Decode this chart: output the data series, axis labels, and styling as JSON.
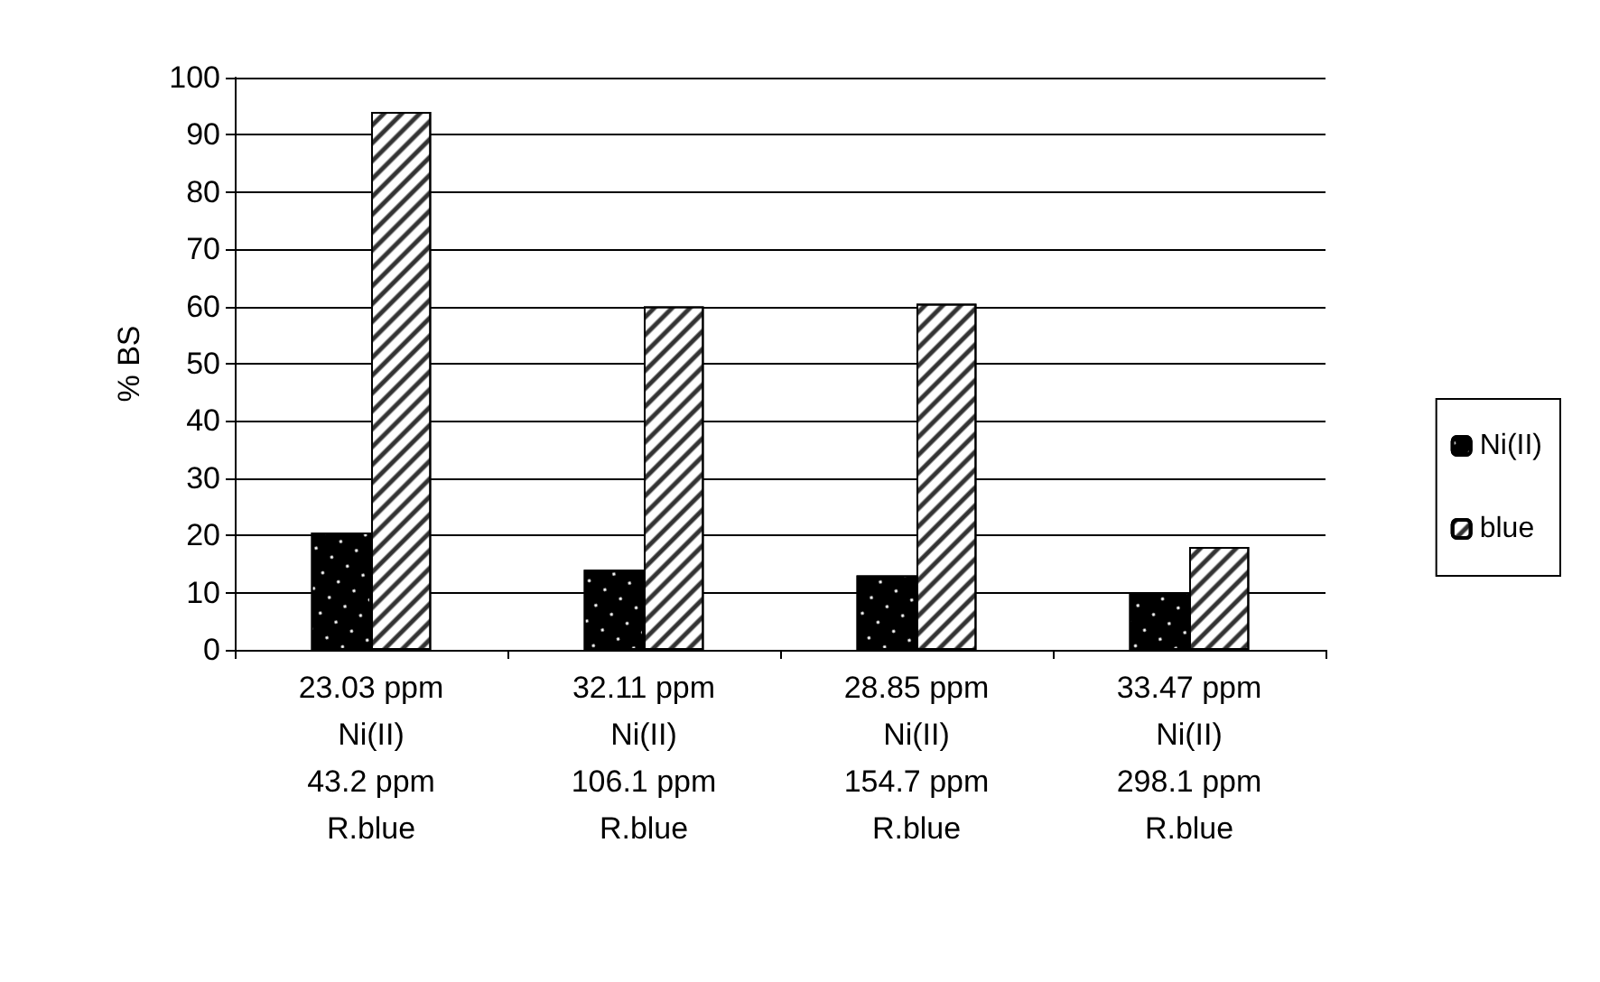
{
  "chart_data": {
    "type": "bar",
    "ylabel": "% BS",
    "categories": [
      "23.03 ppm\nNi(II)\n43.2 ppm\nR.blue",
      "32.11 ppm\nNi(II)\n106.1 ppm\nR.blue",
      "28.85 ppm\nNi(II)\n154.7 ppm\nR.blue",
      "33.47 ppm\nNi(II)\n298.1 ppm\nR.blue"
    ],
    "series": [
      {
        "name": "Ni(II)",
        "color": "#000000",
        "values": [
          20.5,
          14,
          13,
          10
        ]
      },
      {
        "name": "blue",
        "color": "#ffffff",
        "values": [
          94,
          60,
          60.5,
          18
        ]
      }
    ],
    "ylim": [
      0,
      100
    ],
    "yticks": [
      0,
      10,
      20,
      30,
      40,
      50,
      60,
      70,
      80,
      90,
      100
    ],
    "grid": "y",
    "legend": "right"
  }
}
